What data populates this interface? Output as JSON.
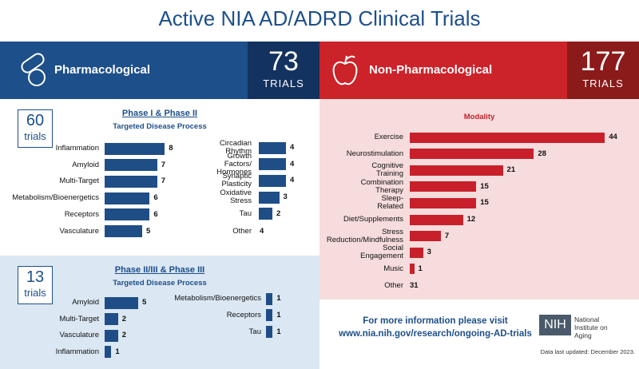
{
  "title": "Active NIA AD/ADRD Clinical Trials",
  "pharmacological": {
    "label": "Pharmacological",
    "count": 73,
    "count_unit": "TRIALS",
    "phase1": {
      "count": 60,
      "count_unit": "trials",
      "other": {
        "label": "Other",
        "value": 4
      }
    },
    "phase3": {
      "count": 13,
      "count_unit": "trials"
    }
  },
  "non_pharmacological": {
    "label": "Non-Pharmacological",
    "count": 177,
    "count_unit": "TRIALS",
    "other": {
      "label": "Other",
      "value": 31
    }
  },
  "footer": {
    "info": "For more information please visit",
    "url": "www.nia.nih.gov/research/ongoing-AD-trials",
    "logo": "NIH",
    "institute": "National Institute on Aging",
    "updated": "Data last updated: December 2023."
  },
  "chart_data": [
    {
      "type": "bar",
      "orientation": "horizontal",
      "title": "Phase I & Phase II",
      "subtitle": "Targeted Disease Process",
      "categories": [
        "Inflammation",
        "Amyloid",
        "Multi-Target",
        "Metabolism/Bioenergetics",
        "Receptors",
        "Vasculature"
      ],
      "values": [
        8,
        7,
        7,
        6,
        6,
        5
      ],
      "color": "#1f4e87"
    },
    {
      "type": "bar",
      "orientation": "horizontal",
      "categories": [
        "Circadian Rhythm",
        "Growth Factors/ Hormones",
        "Synaptic Plasticity",
        "Oxidative Stress",
        "Tau"
      ],
      "values": [
        4,
        4,
        4,
        3,
        2
      ],
      "color": "#1f4e87"
    },
    {
      "type": "bar",
      "orientation": "horizontal",
      "title": "Phase II/III & Phase III",
      "subtitle": "Targeted Disease Process",
      "categories": [
        "Amyloid",
        "Multi-Target",
        "Vasculature",
        "Inflammation"
      ],
      "values": [
        5,
        2,
        2,
        1
      ],
      "color": "#1f4e87"
    },
    {
      "type": "bar",
      "orientation": "horizontal",
      "categories": [
        "Metabolism/Bioenergetics",
        "Receptors",
        "Tau"
      ],
      "values": [
        1,
        1,
        1
      ],
      "color": "#1f4e87"
    },
    {
      "type": "bar",
      "orientation": "horizontal",
      "title": "Modality",
      "categories": [
        "Exercise",
        "Neurostimulation",
        "Cognitive Training",
        "Combination Therapy",
        "Sleep-Related",
        "Diet/Supplements",
        "Stress Reduction/Mindfulness",
        "Social Engagement",
        "Music"
      ],
      "values": [
        44,
        28,
        21,
        15,
        15,
        12,
        7,
        3,
        1
      ],
      "color": "#c8202a"
    }
  ]
}
